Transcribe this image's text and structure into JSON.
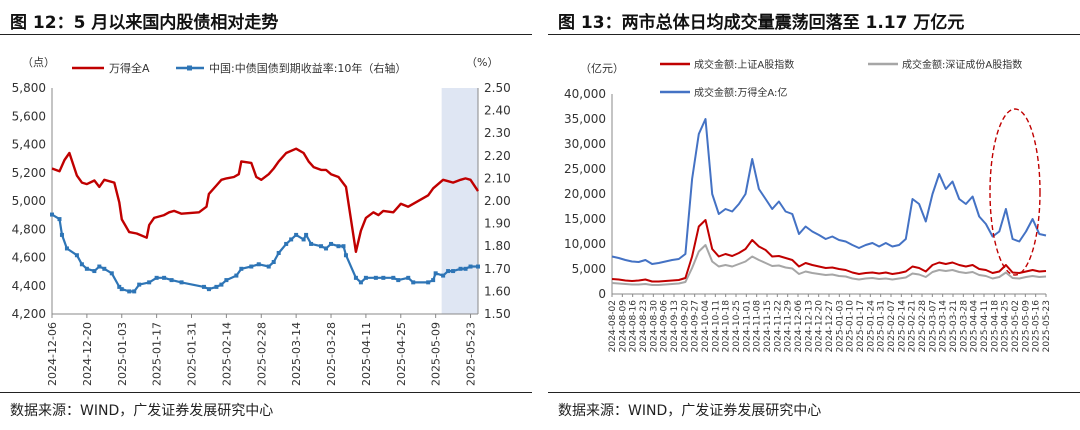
{
  "left": {
    "title": "图 12：5 月以来国内股债相对走势",
    "source": "数据来源：WIND，广发证券发展研究中心",
    "chart_data": {
      "type": "line",
      "y_left_unit": "（点）",
      "y_right_unit": "（%）",
      "ylim_left": [
        4200,
        5800
      ],
      "yticks_left": [
        "5,800",
        "5,600",
        "5,400",
        "5,200",
        "5,000",
        "4,800",
        "4,600",
        "4,400",
        "4,200"
      ],
      "ylim_right": [
        1.5,
        2.5
      ],
      "yticks_right": [
        "2.50",
        "2.40",
        "2.30",
        "2.20",
        "2.10",
        "2.00",
        "1.90",
        "1.80",
        "1.70",
        "1.60",
        "1.50"
      ],
      "xticks": [
        "2024-12-06",
        "2024-12-20",
        "2025-01-03",
        "2025-01-17",
        "2025-01-31",
        "2025-02-14",
        "2025-02-28",
        "2025-03-14",
        "2025-03-28",
        "2025-04-11",
        "2025-04-25",
        "2025-05-09",
        "2025-05-23"
      ],
      "highlight_range": [
        "2025-05-09",
        "2025-05-26"
      ],
      "colors": {
        "series_1": "#c00000",
        "series_2": "#2e75b6",
        "highlight": "#dfe6f3"
      },
      "series": [
        {
          "name": "万得全A",
          "axis": "left",
          "points": [
            [
              "2024-12-06",
              5230
            ],
            [
              "2024-12-09",
              5210
            ],
            [
              "2024-12-11",
              5290
            ],
            [
              "2024-12-13",
              5340
            ],
            [
              "2024-12-16",
              5180
            ],
            [
              "2024-12-18",
              5130
            ],
            [
              "2024-12-20",
              5120
            ],
            [
              "2024-12-23",
              5145
            ],
            [
              "2024-12-25",
              5100
            ],
            [
              "2024-12-27",
              5150
            ],
            [
              "2024-12-31",
              5130
            ],
            [
              "2025-01-02",
              4990
            ],
            [
              "2025-01-03",
              4870
            ],
            [
              "2025-01-06",
              4780
            ],
            [
              "2025-01-09",
              4770
            ],
            [
              "2025-01-13",
              4740
            ],
            [
              "2025-01-14",
              4830
            ],
            [
              "2025-01-16",
              4880
            ],
            [
              "2025-01-20",
              4900
            ],
            [
              "2025-01-22",
              4920
            ],
            [
              "2025-01-24",
              4930
            ],
            [
              "2025-01-27",
              4910
            ],
            [
              "2025-02-03",
              4920
            ],
            [
              "2025-02-06",
              4960
            ],
            [
              "2025-02-07",
              5050
            ],
            [
              "2025-02-10",
              5110
            ],
            [
              "2025-02-12",
              5150
            ],
            [
              "2025-02-14",
              5160
            ],
            [
              "2025-02-17",
              5170
            ],
            [
              "2025-02-19",
              5190
            ],
            [
              "2025-02-20",
              5280
            ],
            [
              "2025-02-24",
              5270
            ],
            [
              "2025-02-26",
              5170
            ],
            [
              "2025-02-28",
              5150
            ],
            [
              "2025-03-03",
              5190
            ],
            [
              "2025-03-05",
              5230
            ],
            [
              "2025-03-07",
              5280
            ],
            [
              "2025-03-10",
              5340
            ],
            [
              "2025-03-14",
              5370
            ],
            [
              "2025-03-17",
              5340
            ],
            [
              "2025-03-19",
              5280
            ],
            [
              "2025-03-21",
              5240
            ],
            [
              "2025-03-24",
              5220
            ],
            [
              "2025-03-26",
              5220
            ],
            [
              "2025-03-28",
              5190
            ],
            [
              "2025-03-31",
              5170
            ],
            [
              "2025-04-03",
              5100
            ],
            [
              "2025-04-07",
              4640
            ],
            [
              "2025-04-09",
              4790
            ],
            [
              "2025-04-11",
              4880
            ],
            [
              "2025-04-14",
              4920
            ],
            [
              "2025-04-16",
              4900
            ],
            [
              "2025-04-18",
              4930
            ],
            [
              "2025-04-22",
              4920
            ],
            [
              "2025-04-24",
              4960
            ],
            [
              "2025-04-25",
              4980
            ],
            [
              "2025-04-28",
              4960
            ],
            [
              "2025-05-06",
              5040
            ],
            [
              "2025-05-08",
              5090
            ],
            [
              "2025-05-12",
              5150
            ],
            [
              "2025-05-14",
              5140
            ],
            [
              "2025-05-16",
              5130
            ],
            [
              "2025-05-19",
              5150
            ],
            [
              "2025-05-21",
              5160
            ],
            [
              "2025-05-23",
              5150
            ],
            [
              "2025-05-26",
              5070
            ]
          ]
        },
        {
          "name": "中国:中债国债到期收益率:10年（右轴）",
          "axis": "right",
          "points": [
            [
              "2024-12-06",
              1.94
            ],
            [
              "2024-12-09",
              1.92
            ],
            [
              "2024-12-10",
              1.85
            ],
            [
              "2024-12-12",
              1.79
            ],
            [
              "2024-12-16",
              1.76
            ],
            [
              "2024-12-18",
              1.72
            ],
            [
              "2024-12-20",
              1.7
            ],
            [
              "2024-12-23",
              1.69
            ],
            [
              "2024-12-25",
              1.71
            ],
            [
              "2024-12-27",
              1.7
            ],
            [
              "2024-12-30",
              1.68
            ],
            [
              "2025-01-02",
              1.62
            ],
            [
              "2025-01-03",
              1.61
            ],
            [
              "2025-01-06",
              1.6
            ],
            [
              "2025-01-08",
              1.6
            ],
            [
              "2025-01-10",
              1.63
            ],
            [
              "2025-01-14",
              1.64
            ],
            [
              "2025-01-17",
              1.66
            ],
            [
              "2025-01-20",
              1.66
            ],
            [
              "2025-01-23",
              1.65
            ],
            [
              "2025-01-27",
              1.64
            ],
            [
              "2025-02-05",
              1.62
            ],
            [
              "2025-02-07",
              1.61
            ],
            [
              "2025-02-10",
              1.62
            ],
            [
              "2025-02-12",
              1.63
            ],
            [
              "2025-02-14",
              1.65
            ],
            [
              "2025-02-18",
              1.67
            ],
            [
              "2025-02-20",
              1.7
            ],
            [
              "2025-02-24",
              1.71
            ],
            [
              "2025-02-27",
              1.72
            ],
            [
              "2025-03-03",
              1.71
            ],
            [
              "2025-03-05",
              1.73
            ],
            [
              "2025-03-07",
              1.77
            ],
            [
              "2025-03-10",
              1.81
            ],
            [
              "2025-03-12",
              1.83
            ],
            [
              "2025-03-14",
              1.85
            ],
            [
              "2025-03-17",
              1.83
            ],
            [
              "2025-03-18",
              1.85
            ],
            [
              "2025-03-20",
              1.81
            ],
            [
              "2025-03-24",
              1.8
            ],
            [
              "2025-03-26",
              1.79
            ],
            [
              "2025-03-28",
              1.81
            ],
            [
              "2025-03-31",
              1.8
            ],
            [
              "2025-04-02",
              1.8
            ],
            [
              "2025-04-03",
              1.76
            ],
            [
              "2025-04-07",
              1.66
            ],
            [
              "2025-04-09",
              1.64
            ],
            [
              "2025-04-11",
              1.66
            ],
            [
              "2025-04-15",
              1.66
            ],
            [
              "2025-04-18",
              1.66
            ],
            [
              "2025-04-22",
              1.66
            ],
            [
              "2025-04-24",
              1.65
            ],
            [
              "2025-04-28",
              1.66
            ],
            [
              "2025-04-30",
              1.64
            ],
            [
              "2025-05-06",
              1.64
            ],
            [
              "2025-05-08",
              1.65
            ],
            [
              "2025-05-09",
              1.68
            ],
            [
              "2025-05-12",
              1.67
            ],
            [
              "2025-05-14",
              1.69
            ],
            [
              "2025-05-16",
              1.69
            ],
            [
              "2025-05-19",
              1.7
            ],
            [
              "2025-05-21",
              1.7
            ],
            [
              "2025-05-23",
              1.71
            ],
            [
              "2025-05-26",
              1.71
            ]
          ]
        }
      ]
    }
  },
  "right": {
    "title": "图 13：两市总体日均成交量震荡回落至 1.17 万亿元",
    "source": "数据来源：WIND，广发证券发展研究中心",
    "chart_data": {
      "type": "line",
      "y_unit": "（亿元）",
      "ylim": [
        0,
        40000
      ],
      "yticks": [
        "40,000",
        "35,000",
        "30,000",
        "25,000",
        "20,000",
        "15,000",
        "10,000",
        "5,000",
        "0"
      ],
      "xticks": [
        "2024-08-02",
        "2024-08-09",
        "2024-08-16",
        "2024-08-23",
        "2024-08-30",
        "2024-09-06",
        "2024-09-13",
        "2024-09-20",
        "2024-09-27",
        "2024-10-04",
        "2024-10-11",
        "2024-10-18",
        "2024-10-25",
        "2024-11-01",
        "2024-11-08",
        "2024-11-15",
        "2024-11-22",
        "2024-11-29",
        "2024-12-06",
        "2024-12-13",
        "2024-12-20",
        "2024-12-27",
        "2025-01-03",
        "2025-01-10",
        "2025-01-17",
        "2025-01-24",
        "2025-01-31",
        "2025-02-07",
        "2025-02-14",
        "2025-02-21",
        "2025-02-28",
        "2025-03-07",
        "2025-03-14",
        "2025-03-21",
        "2025-03-28",
        "2025-04-04",
        "2025-04-11",
        "2025-04-18",
        "2025-04-25",
        "2025-05-02",
        "2025-05-09",
        "2025-05-16",
        "2025-05-23"
      ],
      "annotation": "dashed red ellipse over the most recent period",
      "colors": {
        "series_1": "#c00000",
        "series_2": "#a6a6a6",
        "series_3": "#4472c4",
        "annotation": "#c00000"
      },
      "series": [
        {
          "name": "成交金额:上证A股指数",
          "values": [
            3000,
            2900,
            2700,
            2600,
            2700,
            2900,
            2500,
            2500,
            2600,
            2700,
            2800,
            3200,
            7500,
            13500,
            14800,
            9000,
            7500,
            8000,
            7600,
            8200,
            9000,
            10800,
            9500,
            8800,
            7500,
            7600,
            7200,
            6800,
            5500,
            6200,
            5800,
            5500,
            5200,
            5300,
            5000,
            4800,
            4300,
            4000,
            4200,
            4300,
            4100,
            4300,
            4000,
            4200,
            4500,
            5500,
            5200,
            4500,
            5800,
            6300,
            6000,
            6300,
            5800,
            5500,
            5800,
            5000,
            4800,
            4200,
            4500,
            5800,
            4300,
            4200,
            4500,
            4800,
            4500,
            4600
          ]
        },
        {
          "name": "成交金额:深证成份A股指数",
          "values": [
            2200,
            2100,
            2000,
            1900,
            1900,
            2000,
            1800,
            1800,
            1900,
            2000,
            2100,
            2400,
            5200,
            8500,
            9800,
            6500,
            5500,
            5800,
            5500,
            6000,
            6500,
            7500,
            6800,
            6200,
            5600,
            5700,
            5300,
            5100,
            4000,
            4500,
            4200,
            4000,
            3800,
            3900,
            3600,
            3500,
            3100,
            2900,
            3100,
            3200,
            3000,
            3100,
            2900,
            3100,
            3300,
            4100,
            3900,
            3400,
            4400,
            4800,
            4600,
            4800,
            4400,
            4200,
            4400,
            3800,
            3600,
            3100,
            3400,
            4300,
            3200,
            3100,
            3400,
            3600,
            3400,
            3500
          ]
        },
        {
          "name": "成交金额:万得全A:亿",
          "values": [
            7500,
            7200,
            6800,
            6500,
            6400,
            6800,
            6000,
            6200,
            6500,
            6800,
            7000,
            8000,
            23000,
            32000,
            35000,
            20000,
            16000,
            17000,
            16500,
            18000,
            20000,
            27000,
            21000,
            19000,
            17000,
            18500,
            16500,
            16000,
            12000,
            13500,
            12500,
            11800,
            11000,
            11500,
            10800,
            10500,
            9800,
            9200,
            9800,
            10200,
            9500,
            10200,
            9500,
            9800,
            11000,
            19000,
            18000,
            14500,
            20000,
            24000,
            21000,
            22500,
            19000,
            18000,
            19500,
            15500,
            14000,
            11500,
            12500,
            17000,
            11000,
            10500,
            12500,
            15000,
            12000,
            11700
          ]
        }
      ]
    }
  }
}
